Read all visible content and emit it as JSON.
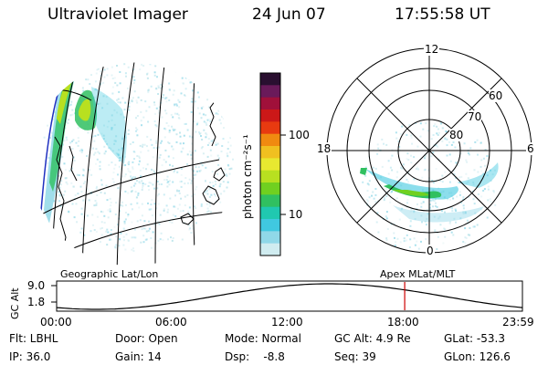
{
  "header": {
    "instrument": "Ultraviolet Imager",
    "date": "24 Jun 07",
    "time": "17:55:58 UT"
  },
  "colorbar": {
    "unit_label": "photon cm⁻²s⁻¹",
    "ticks": [
      "100",
      "10"
    ],
    "colors": [
      "#2a0f30",
      "#6a1a5a",
      "#a0103a",
      "#cc1818",
      "#e83a10",
      "#f08a10",
      "#f0c020",
      "#e8e830",
      "#b8e020",
      "#70d020",
      "#30c060",
      "#20c8b0",
      "#40c8e0",
      "#90d8e8",
      "#d0ecf0"
    ]
  },
  "polar": {
    "hour_labels": [
      "12",
      "18",
      "6",
      "0"
    ],
    "lat_labels": [
      "60",
      "70",
      "80"
    ]
  },
  "timeline": {
    "left_label": "Geographic Lat/Lon",
    "right_label": "Apex MLat/MLT",
    "axis_title": "GC Alt",
    "y_ticks": [
      "9.0",
      "1.8"
    ],
    "x_ticks": [
      "00:00",
      "06:00",
      "12:00",
      "18:00",
      "23:59"
    ],
    "marker_color": "#cc0000"
  },
  "footer": {
    "filter": "Flt: LBHL",
    "ip": "IP: 36.0",
    "door": "Door: Open",
    "gain": "Gain: 14",
    "mode": "Mode: Normal",
    "dsp": "Dsp:    -8.8",
    "gc_alt": "GC Alt: 4.9 Re",
    "seq": "Seq: 39",
    "glat": "GLat: -53.3",
    "glon": "GLon: 126.6"
  }
}
